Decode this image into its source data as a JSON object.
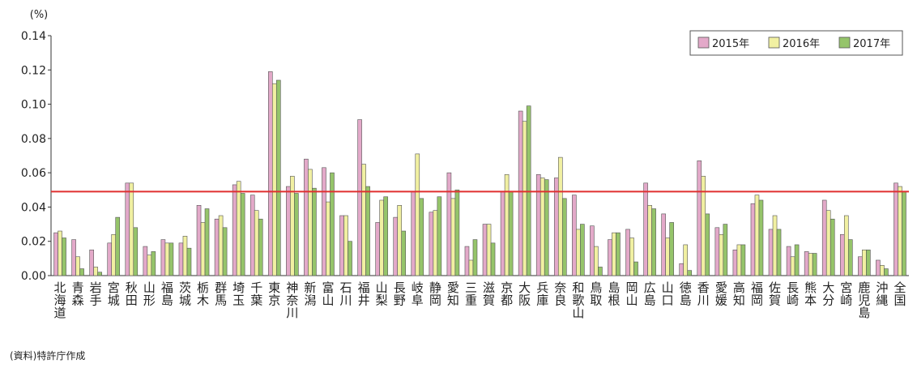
{
  "source_note": "(資料)特許庁作成",
  "colors": {
    "s2015": "#e3a9c9",
    "s2016": "#f1f0a2",
    "s2017": "#95c46a",
    "border": "#555555",
    "refline": "#e03030"
  },
  "chart_data": {
    "type": "bar",
    "y_unit": "(%)",
    "ylim": [
      0,
      0.14
    ],
    "yticks": [
      "0.00",
      "0.02",
      "0.04",
      "0.06",
      "0.08",
      "0.10",
      "0.12",
      "0.14"
    ],
    "grid": false,
    "legend_position": "top-right",
    "reference_line": 0.049,
    "categories": [
      "北海道",
      "青森",
      "岩手",
      "宮城",
      "秋田",
      "山形",
      "福島",
      "茨城",
      "栃木",
      "群馬",
      "埼玉",
      "千葉",
      "東京",
      "神奈川",
      "新潟",
      "富山",
      "石川",
      "福井",
      "山梨",
      "長野",
      "岐阜",
      "静岡",
      "愛知",
      "三重",
      "滋賀",
      "京都",
      "大阪",
      "兵庫",
      "奈良",
      "和歌山",
      "鳥取",
      "島根",
      "岡山",
      "広島",
      "山口",
      "徳島",
      "香川",
      "愛媛",
      "高知",
      "福岡",
      "佐賀",
      "長崎",
      "熊本",
      "大分",
      "宮崎",
      "鹿児島",
      "沖縄",
      "全国"
    ],
    "series": [
      {
        "name": "2015年",
        "values": [
          0.025,
          0.021,
          0.015,
          0.019,
          0.054,
          0.017,
          0.021,
          0.019,
          0.041,
          0.033,
          0.053,
          0.047,
          0.119,
          0.052,
          0.068,
          0.063,
          0.035,
          0.091,
          0.031,
          0.034,
          0.049,
          0.037,
          0.06,
          0.017,
          0.03,
          0.049,
          0.096,
          0.059,
          0.057,
          0.047,
          0.029,
          0.021,
          0.027,
          0.054,
          0.036,
          0.007,
          0.067,
          0.028,
          0.015,
          0.042,
          0.027,
          0.017,
          0.014,
          0.044,
          0.024,
          0.011,
          0.009,
          0.054
        ]
      },
      {
        "name": "2016年",
        "values": [
          0.026,
          0.011,
          0.005,
          0.024,
          0.054,
          0.012,
          0.019,
          0.023,
          0.031,
          0.035,
          0.055,
          0.038,
          0.112,
          0.058,
          0.062,
          0.043,
          0.035,
          0.065,
          0.044,
          0.041,
          0.071,
          0.038,
          0.045,
          0.009,
          0.03,
          0.059,
          0.09,
          0.057,
          0.069,
          0.027,
          0.017,
          0.025,
          0.022,
          0.041,
          0.022,
          0.018,
          0.058,
          0.024,
          0.018,
          0.047,
          0.035,
          0.011,
          0.013,
          0.038,
          0.035,
          0.015,
          0.006,
          0.052
        ]
      },
      {
        "name": "2017年",
        "values": [
          0.022,
          0.004,
          0.002,
          0.034,
          0.028,
          0.014,
          0.019,
          0.016,
          0.039,
          0.028,
          0.048,
          0.033,
          0.114,
          0.048,
          0.051,
          0.06,
          0.02,
          0.052,
          0.046,
          0.026,
          0.045,
          0.046,
          0.05,
          0.021,
          0.019,
          0.049,
          0.099,
          0.056,
          0.045,
          0.03,
          0.005,
          0.025,
          0.008,
          0.039,
          0.031,
          0.003,
          0.036,
          0.03,
          0.018,
          0.044,
          0.027,
          0.018,
          0.013,
          0.033,
          0.021,
          0.015,
          0.004,
          0.049
        ]
      }
    ]
  }
}
